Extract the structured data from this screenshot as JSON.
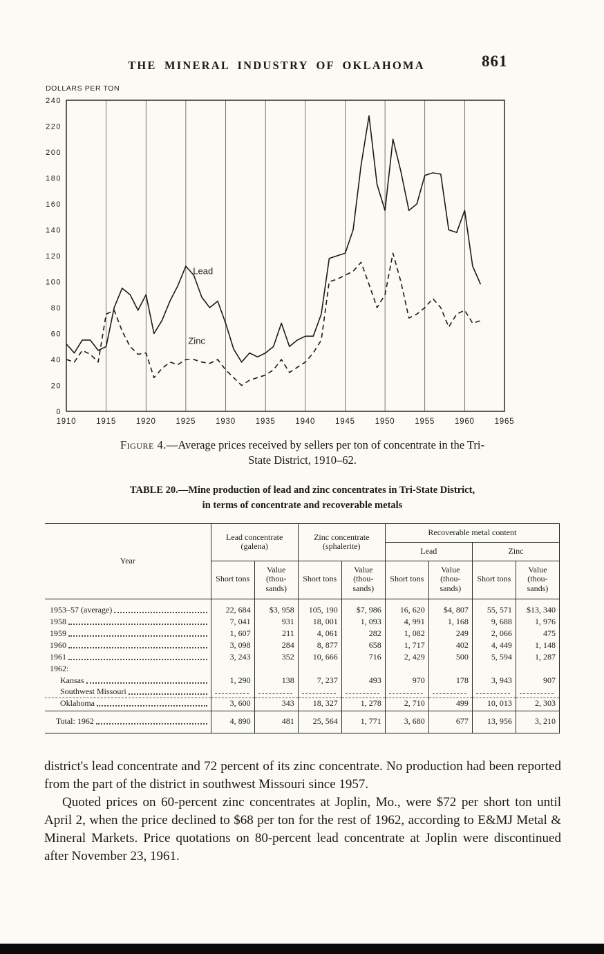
{
  "page": {
    "header_title": "THE MINERAL INDUSTRY OF OKLAHOMA",
    "page_number": "861"
  },
  "chart_data": {
    "type": "line",
    "title": "",
    "xlabel": "",
    "ylabel": "DOLLARS PER TON",
    "xlim": [
      1910,
      1965
    ],
    "ylim": [
      0,
      240
    ],
    "xticks": [
      1910,
      1915,
      1920,
      1925,
      1930,
      1935,
      1940,
      1945,
      1950,
      1955,
      1960,
      1965
    ],
    "yticks": [
      0,
      20,
      40,
      60,
      80,
      100,
      120,
      140,
      160,
      180,
      200,
      220,
      240
    ],
    "grid": "vertical-only",
    "legend": "inline-labels",
    "x": [
      1910,
      1911,
      1912,
      1913,
      1914,
      1915,
      1916,
      1917,
      1918,
      1919,
      1920,
      1921,
      1922,
      1923,
      1924,
      1925,
      1926,
      1927,
      1928,
      1929,
      1930,
      1931,
      1932,
      1933,
      1934,
      1935,
      1936,
      1937,
      1938,
      1939,
      1940,
      1941,
      1942,
      1943,
      1944,
      1945,
      1946,
      1947,
      1948,
      1949,
      1950,
      1951,
      1952,
      1953,
      1954,
      1955,
      1956,
      1957,
      1958,
      1959,
      1960,
      1961,
      1962
    ],
    "series": [
      {
        "name": "Lead",
        "style": "solid",
        "values": [
          52,
          45,
          55,
          55,
          47,
          50,
          80,
          95,
          90,
          78,
          90,
          60,
          70,
          85,
          97,
          112,
          105,
          88,
          80,
          85,
          68,
          48,
          38,
          45,
          42,
          45,
          50,
          68,
          50,
          55,
          58,
          58,
          75,
          118,
          120,
          122,
          140,
          190,
          228,
          175,
          155,
          210,
          185,
          155,
          160,
          182,
          184,
          183,
          140,
          138,
          155,
          112,
          98
        ]
      },
      {
        "name": "Zinc",
        "style": "dashed",
        "values": [
          40,
          38,
          47,
          44,
          38,
          75,
          78,
          62,
          50,
          44,
          45,
          26,
          33,
          38,
          36,
          40,
          40,
          38,
          37,
          40,
          32,
          26,
          20,
          24,
          26,
          28,
          32,
          40,
          30,
          34,
          38,
          45,
          55,
          100,
          102,
          105,
          108,
          115,
          98,
          80,
          90,
          122,
          100,
          72,
          75,
          80,
          87,
          80,
          65,
          75,
          78,
          68,
          70
        ]
      }
    ],
    "annotations": [
      {
        "text": "Lead",
        "x": 1925.9,
        "y": 106
      },
      {
        "text": "Zinc",
        "x": 1925.3,
        "y": 52
      }
    ]
  },
  "figure_caption": {
    "label": "Figure 4.",
    "text1": "—Average prices received by sellers per ton of concentrate in the Tri-",
    "text2": "State District, 1910–62."
  },
  "table": {
    "title_line1": "TABLE 20.—Mine production of lead and zinc concentrates in Tri-State District,",
    "title_line2": "in terms of concentrate and recoverable metals",
    "year_header": "Year",
    "group_lead": "Lead concentrate (galena)",
    "group_zinc": "Zinc concentrate (sphalerite)",
    "group_recoverable": "Recoverable metal content",
    "sub_lead": "Lead",
    "sub_zinc": "Zinc",
    "subheaders": [
      "Short tons",
      "Value (thou-sands)",
      "Short tons",
      "Value (thou-sands)",
      "Short tons",
      "Value (thou-sands)",
      "Short tons",
      "Value (thou-sands)"
    ],
    "rows": [
      {
        "label": "1953–57 (average)",
        "type": "data",
        "values": [
          "22, 684",
          "$3, 958",
          "105, 190",
          "$7, 986",
          "16, 620",
          "$4, 807",
          "55, 571",
          "$13, 340"
        ]
      },
      {
        "label": "1958",
        "type": "data",
        "values": [
          "7, 041",
          "931",
          "18, 001",
          "1, 093",
          "4, 991",
          "1, 168",
          "9, 688",
          "1, 976"
        ]
      },
      {
        "label": "1959",
        "type": "data",
        "values": [
          "1, 607",
          "211",
          "4, 061",
          "282",
          "1, 082",
          "249",
          "2, 066",
          "475"
        ]
      },
      {
        "label": "1960",
        "type": "data",
        "values": [
          "3, 098",
          "284",
          "8, 877",
          "658",
          "1, 717",
          "402",
          "4, 449",
          "1, 148"
        ]
      },
      {
        "label": "1961",
        "type": "data",
        "values": [
          "3, 243",
          "352",
          "10, 666",
          "716",
          "2, 429",
          "500",
          "5, 594",
          "1, 287"
        ]
      },
      {
        "label": "1962:",
        "type": "section",
        "values": [
          "",
          "",
          "",
          "",
          "",
          "",
          "",
          ""
        ]
      },
      {
        "label": "Kansas",
        "type": "data",
        "indent": true,
        "values": [
          "1, 290",
          "138",
          "7, 237",
          "493",
          "970",
          "178",
          "3, 943",
          "907"
        ]
      },
      {
        "label": "Southwest Missouri",
        "type": "nodata",
        "indent": true,
        "values": [
          "",
          "",
          "",
          "",
          "",
          "",
          "",
          ""
        ]
      },
      {
        "label": "Oklahoma",
        "type": "subtotal",
        "indent": true,
        "values": [
          "3, 600",
          "343",
          "18, 327",
          "1, 278",
          "2, 710",
          "499",
          "10, 013",
          "2, 303"
        ]
      },
      {
        "label": "Total: 1962",
        "type": "total",
        "values": [
          "4, 890",
          "481",
          "25, 564",
          "1, 771",
          "3, 680",
          "677",
          "13, 956",
          "3, 210"
        ]
      }
    ]
  },
  "paragraphs": {
    "p1": "district's lead concentrate and 72 percent of its zinc concentrate. No production had been reported from the part of the district in southwest Missouri since 1957.",
    "p2": "Quoted prices on 60-percent zinc concentrates at Joplin, Mo., were $72 per short ton until April 2, when the price declined to $68 per ton for the rest of 1962, according to E&MJ Metal & Mineral Markets. Price quotations on 80-percent lead concentrate at Joplin were discontinued after November 23, 1961."
  }
}
